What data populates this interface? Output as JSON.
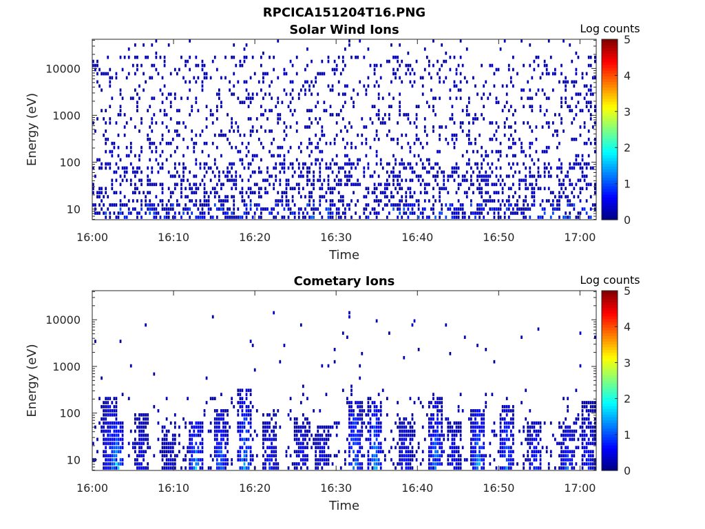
{
  "figure": {
    "title": "RPCICA151204T16.PNG",
    "colorbar_label": "Log counts",
    "colormap": "jet",
    "colorbar_ticks": [
      "0",
      "1",
      "2",
      "3",
      "4",
      "5"
    ]
  },
  "chart_data": [
    {
      "type": "heatmap",
      "title": "Solar Wind Ions",
      "xlabel": "Time",
      "ylabel": "Energy (eV)",
      "x_tick_labels": [
        "16:00",
        "16:10",
        "16:20",
        "16:30",
        "16:40",
        "16:50",
        "17:00"
      ],
      "x_range_minutes": [
        0,
        62
      ],
      "y_scale": "log",
      "y_range": [
        5.9,
        42000
      ],
      "y_tick_labels": [
        "10",
        "100",
        "1000",
        "10000"
      ],
      "y_tick_values": [
        10,
        100,
        1000,
        10000
      ],
      "clim": [
        0,
        5
      ],
      "description_of_data": "sparse counts at all energies, mostly 0.1-0.5 log counts; denser below ~100 eV",
      "max_log_counts_approx": 1.2
    },
    {
      "type": "heatmap",
      "title": "Cometary Ions",
      "xlabel": "Time",
      "ylabel": "Energy (eV)",
      "x_tick_labels": [
        "16:00",
        "16:10",
        "16:20",
        "16:30",
        "16:40",
        "16:50",
        "17:00"
      ],
      "x_range_minutes": [
        0,
        62
      ],
      "y_scale": "log",
      "y_range": [
        5.9,
        42000
      ],
      "y_tick_labels": [
        "10",
        "100",
        "1000",
        "10000"
      ],
      "y_tick_values": [
        10,
        100,
        1000,
        10000
      ],
      "clim": [
        0,
        5
      ],
      "max_log_counts_approx": 2.2,
      "bursts": [
        {
          "time_min": 2.3,
          "emax": 220,
          "peak": 1.5
        },
        {
          "time_min": 3.0,
          "emax": 60,
          "peak": 2.2
        },
        {
          "time_min": 6.0,
          "emax": 90,
          "peak": 0.8
        },
        {
          "time_min": 9.5,
          "emax": 45,
          "peak": 0.7
        },
        {
          "time_min": 12.8,
          "emax": 70,
          "peak": 1.9
        },
        {
          "time_min": 15.8,
          "emax": 110,
          "peak": 1.5
        },
        {
          "time_min": 18.8,
          "emax": 330,
          "peak": 1.8
        },
        {
          "time_min": 21.8,
          "emax": 90,
          "peak": 1.0
        },
        {
          "time_min": 25.8,
          "emax": 80,
          "peak": 0.9
        },
        {
          "time_min": 28.3,
          "emax": 55,
          "peak": 0.8
        },
        {
          "time_min": 32.3,
          "emax": 200,
          "peak": 1.8
        },
        {
          "time_min": 34.8,
          "emax": 230,
          "peak": 1.9
        },
        {
          "time_min": 38.5,
          "emax": 80,
          "peak": 1.0
        },
        {
          "time_min": 42.3,
          "emax": 220,
          "peak": 1.6
        },
        {
          "time_min": 44.5,
          "emax": 60,
          "peak": 0.9
        },
        {
          "time_min": 47.5,
          "emax": 120,
          "peak": 1.9
        },
        {
          "time_min": 51.0,
          "emax": 140,
          "peak": 1.6
        },
        {
          "time_min": 54.5,
          "emax": 60,
          "peak": 1.2
        },
        {
          "time_min": 58.5,
          "emax": 50,
          "peak": 1.3
        },
        {
          "time_min": 61.0,
          "emax": 180,
          "peak": 1.0
        }
      ]
    }
  ]
}
